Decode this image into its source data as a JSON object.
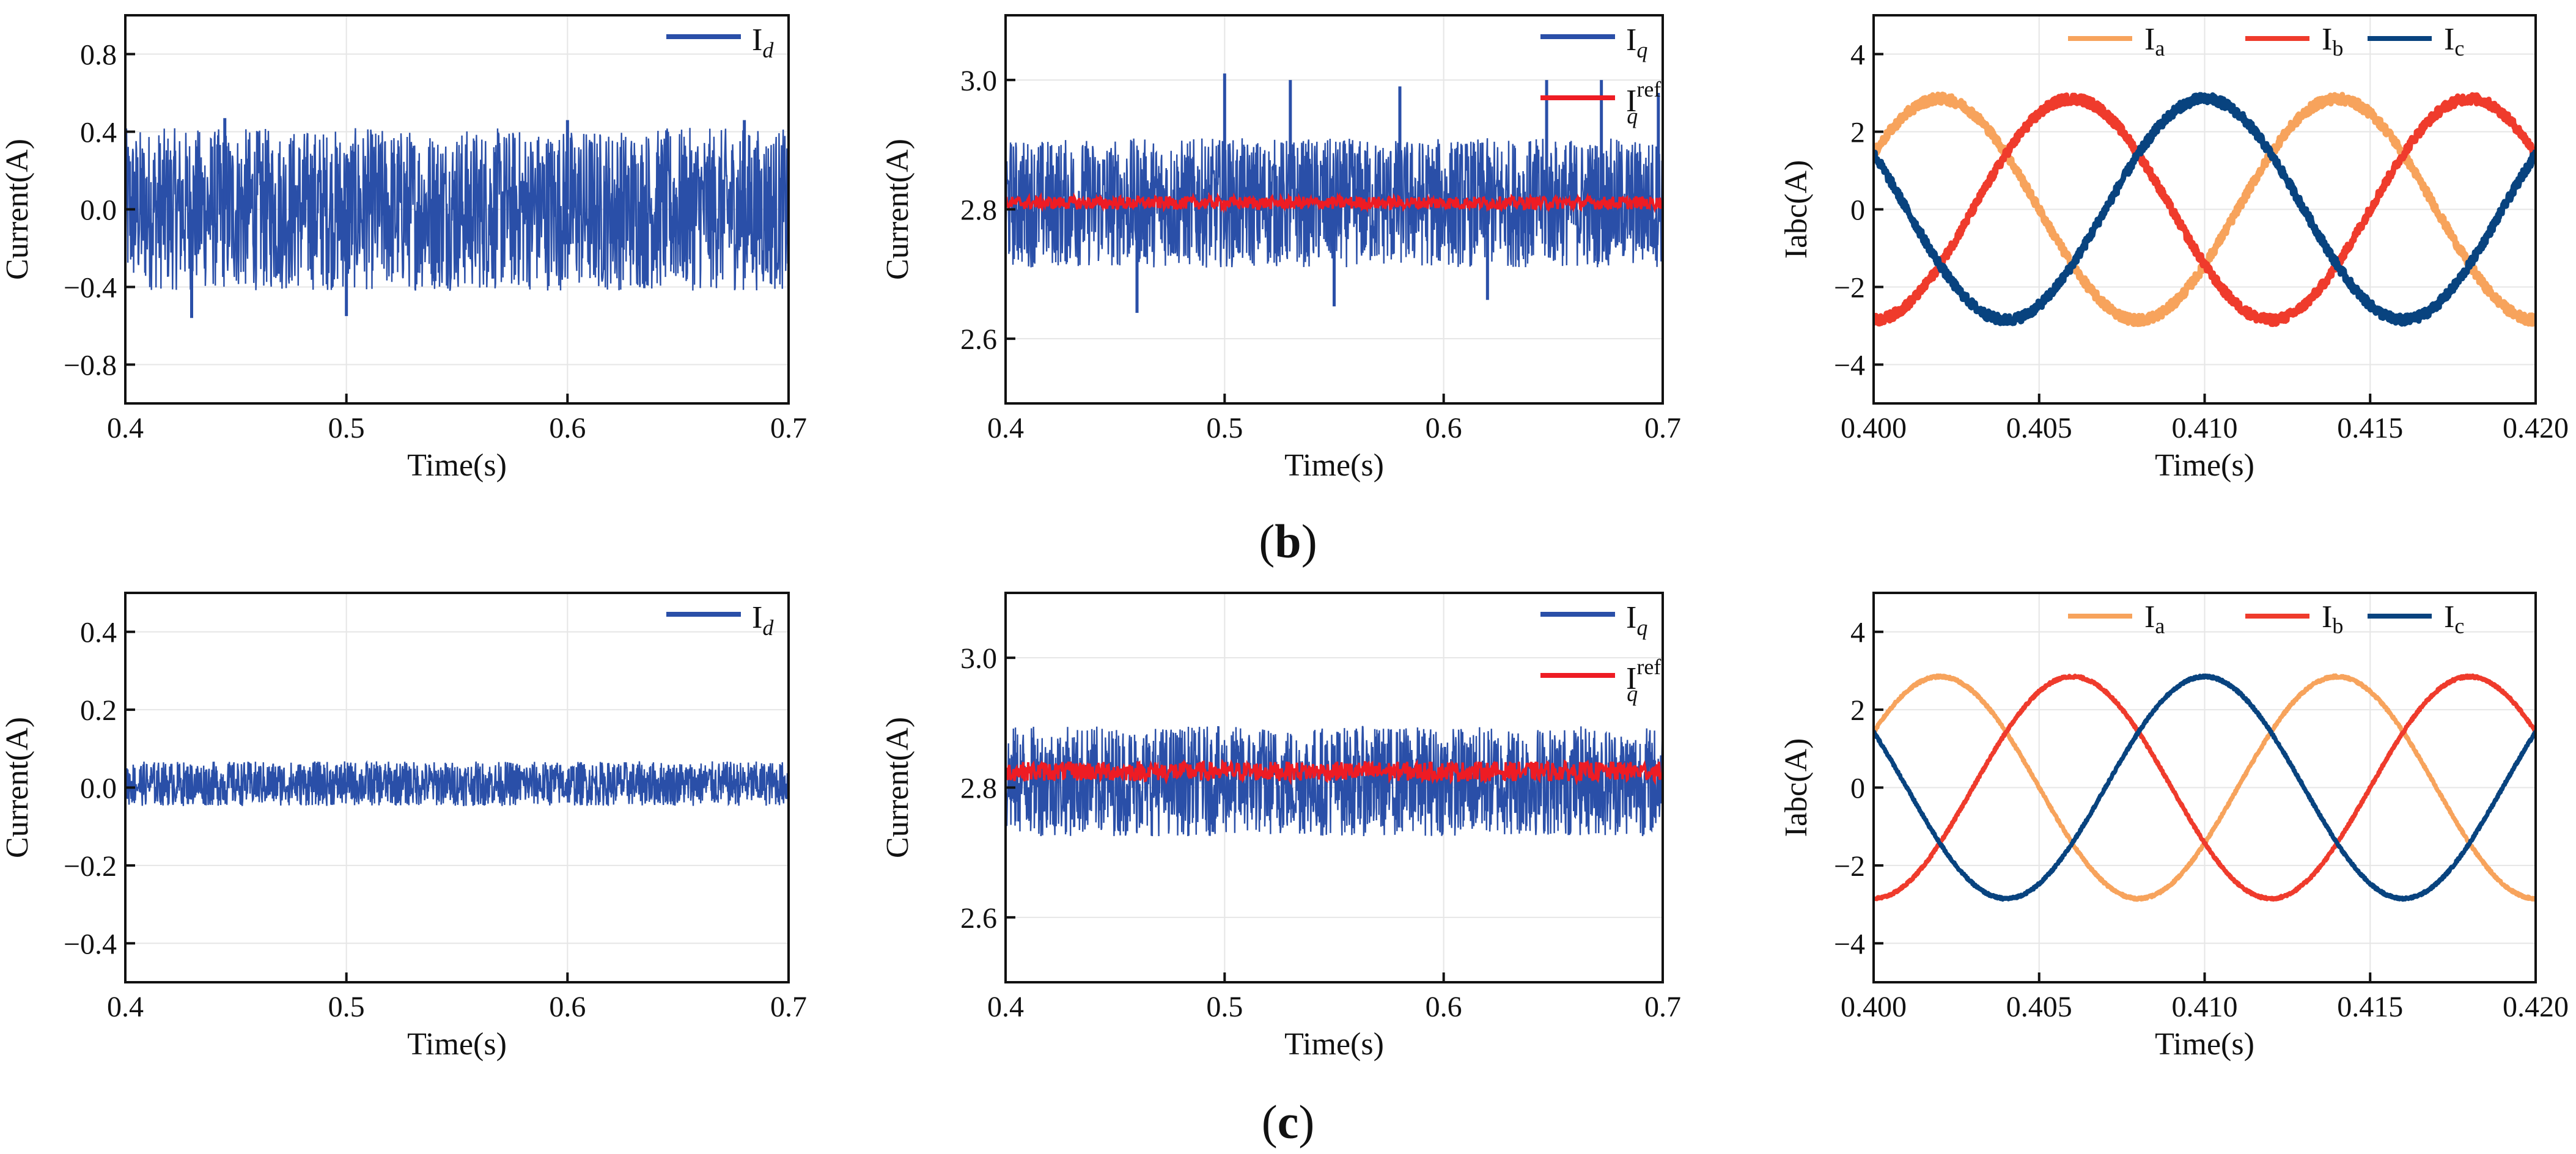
{
  "colors": {
    "dq": "#2a4fa8",
    "ref": "#ee1c24",
    "a": "#f7a35c",
    "b": "#ef3b2c",
    "c": "#08437f"
  },
  "captions": {
    "b": "b",
    "c": "c"
  },
  "chart_data": [
    {
      "id": "b-id",
      "type": "line",
      "row": "b",
      "col": 1,
      "xlabel": "Time(s)",
      "ylabel": "Current(A)",
      "xlim": [
        0.4,
        0.7
      ],
      "ylim": [
        -1.0,
        1.0
      ],
      "xticks": [
        0.4,
        0.5,
        0.6,
        0.7
      ],
      "xtick_labels": [
        "0.4",
        "0.5",
        "0.6",
        "0.7"
      ],
      "yticks": [
        -0.8,
        -0.4,
        0.0,
        0.4,
        0.8
      ],
      "ytick_labels": [
        "−0.8",
        "−0.4",
        "0.0",
        "0.4",
        "0.8"
      ],
      "series": [
        {
          "name_main": "I",
          "name_sub": "d",
          "name_sup": "",
          "color": "#2a4fa8",
          "kind": "band",
          "center": 0.0,
          "band_min": -0.42,
          "band_max": 0.42,
          "spikes": [
            [
              0.445,
              0.47
            ],
            [
              0.5,
              -0.55
            ],
            [
              0.6,
              0.46
            ],
            [
              0.43,
              -0.56
            ],
            [
              0.68,
              0.46
            ]
          ]
        }
      ]
    },
    {
      "id": "b-iq",
      "type": "line",
      "row": "b",
      "col": 2,
      "xlabel": "Time(s)",
      "ylabel": "Current(A)",
      "xlim": [
        0.4,
        0.7
      ],
      "ylim": [
        2.5,
        3.1
      ],
      "xticks": [
        0.4,
        0.5,
        0.6,
        0.7
      ],
      "xtick_labels": [
        "0.4",
        "0.5",
        "0.6",
        "0.7"
      ],
      "yticks": [
        2.6,
        2.8,
        3.0
      ],
      "ytick_labels": [
        "2.6",
        "2.8",
        "3.0"
      ],
      "series": [
        {
          "name_main": "I",
          "name_sub": "q",
          "name_sup": "",
          "color": "#2a4fa8",
          "kind": "band",
          "center": 2.81,
          "band_min": 2.72,
          "band_max": 2.92,
          "spikes": [
            [
              0.5,
              3.01
            ],
            [
              0.53,
              3.0
            ],
            [
              0.58,
              2.99
            ],
            [
              0.647,
              3.0
            ],
            [
              0.672,
              3.0
            ],
            [
              0.698,
              2.98
            ],
            [
              0.46,
              2.64
            ],
            [
              0.55,
              2.65
            ],
            [
              0.62,
              2.66
            ]
          ]
        },
        {
          "name_main": "I",
          "name_sub": "q",
          "name_sup": "ref",
          "color": "#ee1c24",
          "kind": "band",
          "center": 2.81,
          "band_min": 2.8,
          "band_max": 2.82,
          "spikes": []
        }
      ]
    },
    {
      "id": "b-iabc",
      "type": "line",
      "row": "b",
      "col": 3,
      "xlabel": "Time(s)",
      "ylabel": "Iabc(A)",
      "xlim": [
        0.4,
        0.42
      ],
      "ylim": [
        -5,
        5
      ],
      "xticks": [
        0.4,
        0.405,
        0.41,
        0.415,
        0.42
      ],
      "xtick_labels": [
        "0.400",
        "0.405",
        "0.410",
        "0.415",
        "0.420"
      ],
      "yticks": [
        -4,
        -2,
        0,
        2,
        4
      ],
      "ytick_labels": [
        "−4",
        "−2",
        "0",
        "2",
        "4"
      ],
      "series": [
        {
          "name_main": "I",
          "name_sub": "a",
          "name_sup": "",
          "color": "#f7a35c",
          "kind": "sine",
          "amplitude": 2.85,
          "freq": 83.333,
          "phase_deg": -90,
          "noise": 0.12
        },
        {
          "name_main": "I",
          "name_sub": "b",
          "name_sup": "",
          "color": "#ef3b2c",
          "kind": "sine",
          "amplitude": 2.85,
          "freq": 83.333,
          "phase_deg": 150,
          "noise": 0.12
        },
        {
          "name_main": "I",
          "name_sub": "c",
          "name_sup": "",
          "color": "#08437f",
          "kind": "sine",
          "amplitude": 2.85,
          "freq": 83.333,
          "phase_deg": 30,
          "noise": 0.12
        }
      ]
    },
    {
      "id": "c-id",
      "type": "line",
      "row": "c",
      "col": 1,
      "xlabel": "Time(s)",
      "ylabel": "Current(A)",
      "xlim": [
        0.4,
        0.7
      ],
      "ylim": [
        -0.5,
        0.5
      ],
      "xticks": [
        0.4,
        0.5,
        0.6,
        0.7
      ],
      "xtick_labels": [
        "0.4",
        "0.5",
        "0.6",
        "0.7"
      ],
      "yticks": [
        -0.4,
        -0.2,
        0.0,
        0.2,
        0.4
      ],
      "ytick_labels": [
        "−0.4",
        "−0.2",
        "0.0",
        "0.2",
        "0.4"
      ],
      "series": [
        {
          "name_main": "I",
          "name_sub": "d",
          "name_sup": "",
          "color": "#2a4fa8",
          "kind": "band",
          "center": 0.01,
          "band_min": -0.05,
          "band_max": 0.065,
          "spikes": []
        }
      ]
    },
    {
      "id": "c-iq",
      "type": "line",
      "row": "c",
      "col": 2,
      "xlabel": "Time(s)",
      "ylabel": "Current(A)",
      "xlim": [
        0.4,
        0.7
      ],
      "ylim": [
        2.5,
        3.1
      ],
      "xticks": [
        0.4,
        0.5,
        0.6,
        0.7
      ],
      "xtick_labels": [
        "0.4",
        "0.5",
        "0.6",
        "0.7"
      ],
      "yticks": [
        2.6,
        2.8,
        3.0
      ],
      "ytick_labels": [
        "2.6",
        "2.8",
        "3.0"
      ],
      "series": [
        {
          "name_main": "I",
          "name_sub": "q",
          "name_sup": "",
          "color": "#2a4fa8",
          "kind": "band",
          "center": 2.81,
          "band_min": 2.73,
          "band_max": 2.9,
          "spikes": []
        },
        {
          "name_main": "I",
          "name_sub": "q",
          "name_sup": "ref",
          "color": "#ee1c24",
          "kind": "band",
          "center": 2.825,
          "band_min": 2.81,
          "band_max": 2.84,
          "spikes": []
        }
      ]
    },
    {
      "id": "c-iabc",
      "type": "line",
      "row": "c",
      "col": 3,
      "xlabel": "Time(s)",
      "ylabel": "Iabc(A)",
      "xlim": [
        0.4,
        0.42
      ],
      "ylim": [
        -5,
        5
      ],
      "xticks": [
        0.4,
        0.405,
        0.41,
        0.415,
        0.42
      ],
      "xtick_labels": [
        "0.400",
        "0.405",
        "0.410",
        "0.415",
        "0.420"
      ],
      "yticks": [
        -4,
        -2,
        0,
        2,
        4
      ],
      "ytick_labels": [
        "−4",
        "−2",
        "0",
        "2",
        "4"
      ],
      "series": [
        {
          "name_main": "I",
          "name_sub": "a",
          "name_sup": "",
          "color": "#f7a35c",
          "kind": "sine",
          "amplitude": 2.85,
          "freq": 83.333,
          "phase_deg": -90,
          "noise": 0.03
        },
        {
          "name_main": "I",
          "name_sub": "b",
          "name_sup": "",
          "color": "#ef3b2c",
          "kind": "sine",
          "amplitude": 2.85,
          "freq": 83.333,
          "phase_deg": 150,
          "noise": 0.03
        },
        {
          "name_main": "I",
          "name_sub": "c",
          "name_sup": "",
          "color": "#08437f",
          "kind": "sine",
          "amplitude": 2.85,
          "freq": 83.333,
          "phase_deg": 30,
          "noise": 0.03
        }
      ]
    }
  ]
}
